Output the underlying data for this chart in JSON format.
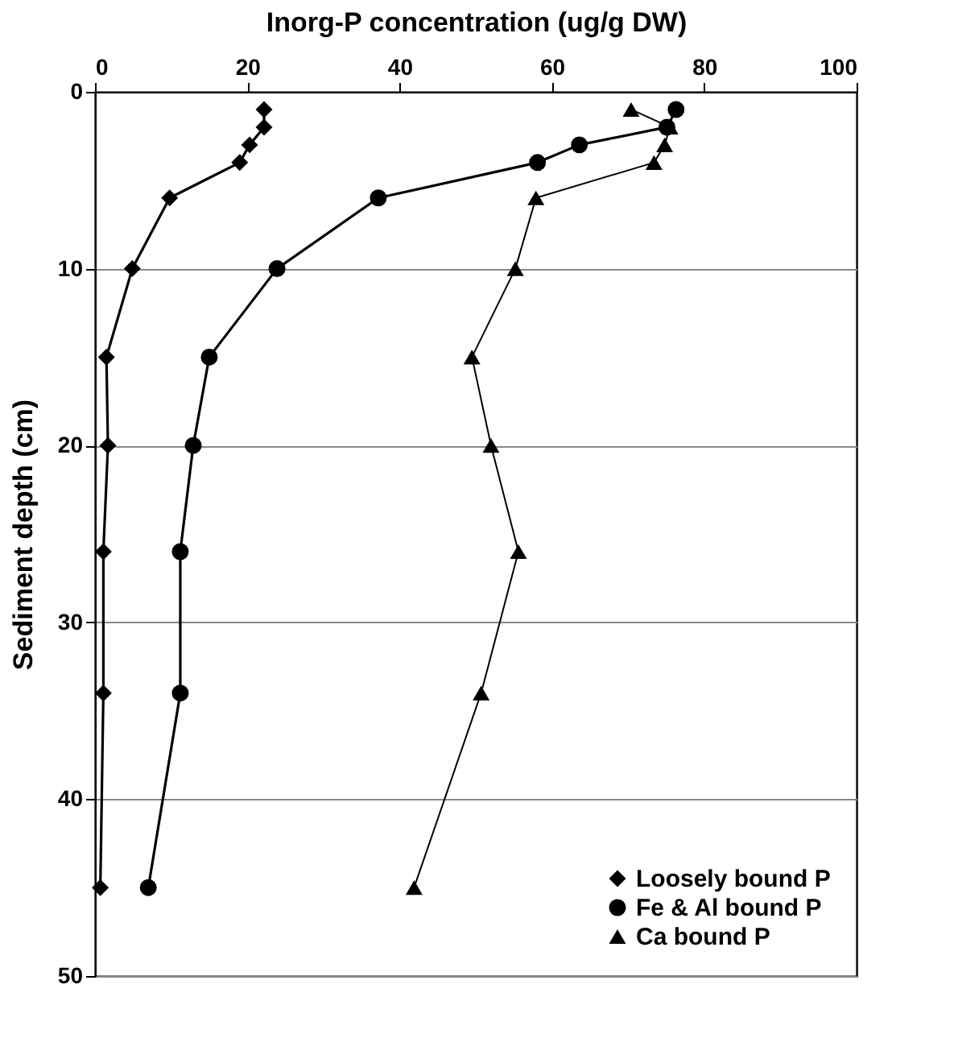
{
  "chart_data": {
    "type": "line",
    "xlabel": "Inorg-P concentration (ug/g DW)",
    "ylabel": "Sediment depth (cm)",
    "xlim": [
      0,
      100
    ],
    "xticks": [
      0,
      20,
      40,
      60,
      80,
      100
    ],
    "ylim": [
      50,
      0
    ],
    "yticks": [
      0,
      10,
      20,
      30,
      40,
      50
    ],
    "grid": "y",
    "legend": "bottom right",
    "series": [
      {
        "name": "Loosely bound P",
        "color": "#000000",
        "marker": "diamond",
        "x": [
          22.2,
          22.2,
          20.3,
          19.0,
          9.8,
          4.9,
          1.5,
          1.7,
          1.1,
          1.1,
          0.7
        ],
        "values": [
          1,
          2,
          3,
          4,
          6,
          10,
          15,
          20,
          26,
          34,
          45
        ]
      },
      {
        "name": "Fe & Al bound P",
        "color": "#000000",
        "marker": "circle",
        "x": [
          76.3,
          75.1,
          63.6,
          58.1,
          37.2,
          23.9,
          15.0,
          12.9,
          11.2,
          11.2,
          7.0
        ],
        "values": [
          1,
          2,
          3,
          4,
          6,
          10,
          15,
          20,
          26,
          34,
          45
        ]
      },
      {
        "name": "Ca bound P",
        "color": "#000000",
        "marker": "triangle",
        "x": [
          70.4,
          75.5,
          74.8,
          73.4,
          57.9,
          55.2,
          49.5,
          52.0,
          55.6,
          50.7,
          41.9
        ],
        "values": [
          1,
          2,
          3,
          4,
          6,
          10,
          15,
          20,
          26,
          34,
          45
        ]
      }
    ]
  }
}
